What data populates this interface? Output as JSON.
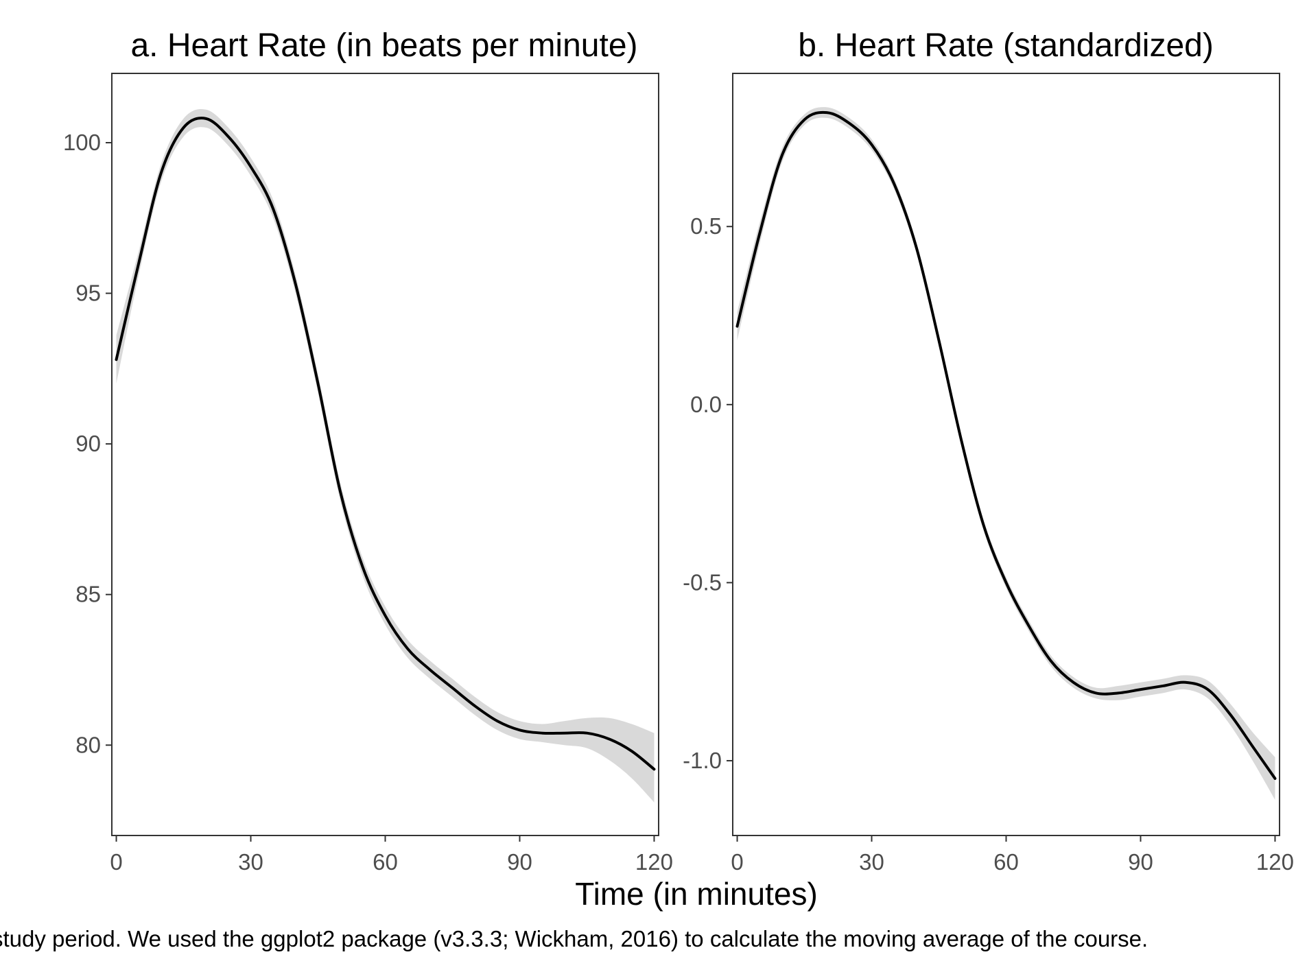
{
  "figure": {
    "xlabel": "Time (in minutes)",
    "caption": "study period. We used the ggplot2 package (v3.3.3; Wickham, 2016) to calculate the moving average of the course."
  },
  "colors": {
    "line": "#000000",
    "ribbon": "#d9d9d9",
    "panel_border": "#333333",
    "tick_text": "#4d4d4d",
    "background": "#ffffff"
  },
  "chart_data": [
    {
      "type": "line",
      "title": "a. Heart Rate (in beats per minute)",
      "xlabel": "Time (in minutes)",
      "ylabel": "",
      "xlim": [
        -1,
        121
      ],
      "ylim": [
        77.0,
        102.3
      ],
      "xticks": [
        0,
        30,
        60,
        90,
        120
      ],
      "xtick_labels": [
        "0",
        "30",
        "60",
        "90",
        "120"
      ],
      "yticks": [
        80,
        85,
        90,
        95,
        100
      ],
      "ytick_labels": [
        "80",
        "85",
        "90",
        "95",
        "100"
      ],
      "grid": false,
      "x": [
        0,
        5,
        10,
        15,
        20,
        25,
        30,
        35,
        40,
        45,
        50,
        55,
        60,
        65,
        70,
        75,
        80,
        85,
        90,
        95,
        100,
        105,
        110,
        115,
        120
      ],
      "series": [
        {
          "values": [
            92.8,
            96.0,
            99.0,
            100.5,
            100.8,
            100.2,
            99.2,
            97.8,
            95.3,
            92.0,
            88.4,
            85.9,
            84.3,
            83.2,
            82.5,
            81.9,
            81.3,
            80.8,
            80.5,
            80.4,
            80.4,
            80.4,
            80.2,
            79.8,
            79.2
          ],
          "lower": [
            92.0,
            95.6,
            98.7,
            100.2,
            100.5,
            99.9,
            98.9,
            97.5,
            95.0,
            91.7,
            88.1,
            85.6,
            84.0,
            82.9,
            82.2,
            81.6,
            81.0,
            80.5,
            80.2,
            80.1,
            80.0,
            79.9,
            79.5,
            78.9,
            78.1
          ],
          "upper": [
            93.6,
            96.4,
            99.3,
            100.8,
            101.1,
            100.5,
            99.5,
            98.1,
            95.6,
            92.3,
            88.7,
            86.2,
            84.6,
            83.5,
            82.8,
            82.2,
            81.6,
            81.1,
            80.8,
            80.7,
            80.8,
            80.9,
            80.9,
            80.7,
            80.4
          ]
        }
      ]
    },
    {
      "type": "line",
      "title": "b. Heart Rate (standardized)",
      "xlabel": "Time (in minutes)",
      "ylabel": "",
      "xlim": [
        -1,
        121
      ],
      "ylim": [
        -1.21,
        0.93
      ],
      "xticks": [
        0,
        30,
        60,
        90,
        120
      ],
      "xtick_labels": [
        "0",
        "30",
        "60",
        "90",
        "120"
      ],
      "yticks": [
        -1.0,
        -0.5,
        0.0,
        0.5
      ],
      "ytick_labels": [
        "-1.0",
        "-0.5",
        "0.0",
        "0.5"
      ],
      "grid": false,
      "x": [
        0,
        5,
        10,
        15,
        20,
        25,
        30,
        35,
        40,
        45,
        50,
        55,
        60,
        65,
        70,
        75,
        80,
        85,
        90,
        95,
        100,
        105,
        110,
        115,
        120
      ],
      "series": [
        {
          "values": [
            0.22,
            0.48,
            0.7,
            0.8,
            0.82,
            0.79,
            0.73,
            0.62,
            0.44,
            0.18,
            -0.1,
            -0.34,
            -0.5,
            -0.62,
            -0.72,
            -0.78,
            -0.81,
            -0.81,
            -0.8,
            -0.79,
            -0.78,
            -0.8,
            -0.87,
            -0.96,
            -1.05
          ],
          "lower": [
            0.18,
            0.45,
            0.68,
            0.785,
            0.805,
            0.775,
            0.715,
            0.605,
            0.425,
            0.165,
            -0.115,
            -0.355,
            -0.515,
            -0.635,
            -0.735,
            -0.795,
            -0.825,
            -0.83,
            -0.82,
            -0.81,
            -0.8,
            -0.825,
            -0.9,
            -1.0,
            -1.11
          ],
          "upper": [
            0.26,
            0.51,
            0.72,
            0.815,
            0.835,
            0.805,
            0.745,
            0.635,
            0.455,
            0.195,
            -0.085,
            -0.325,
            -0.485,
            -0.605,
            -0.705,
            -0.765,
            -0.795,
            -0.79,
            -0.78,
            -0.77,
            -0.76,
            -0.775,
            -0.84,
            -0.92,
            -0.99
          ]
        }
      ]
    }
  ]
}
